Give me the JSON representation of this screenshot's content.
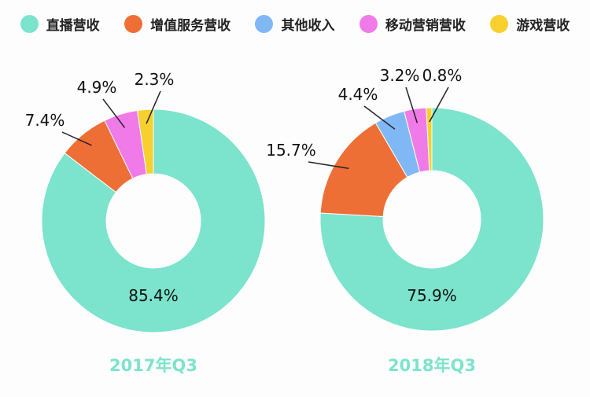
{
  "chart_data": {
    "type": "pie",
    "variant": "donut",
    "categories": [
      "直播营收",
      "增值服务营收",
      "其他收入",
      "移动营销营收",
      "游戏营收"
    ],
    "colors": [
      "#7ce3cc",
      "#ee6f35",
      "#7fb8f5",
      "#f07be8",
      "#f7d030"
    ],
    "legend_position": "top",
    "charts": [
      {
        "title": "2017年Q3",
        "values": [
          85.4,
          7.4,
          0,
          4.9,
          2.3
        ],
        "labels": [
          "85.4%",
          "7.4%",
          "",
          "4.9%",
          "2.3%"
        ]
      },
      {
        "title": "2018年Q3",
        "values": [
          75.9,
          15.7,
          4.4,
          3.2,
          0.8
        ],
        "labels": [
          "75.9%",
          "15.7%",
          "4.4%",
          "3.2%",
          "0.8%"
        ]
      }
    ]
  }
}
